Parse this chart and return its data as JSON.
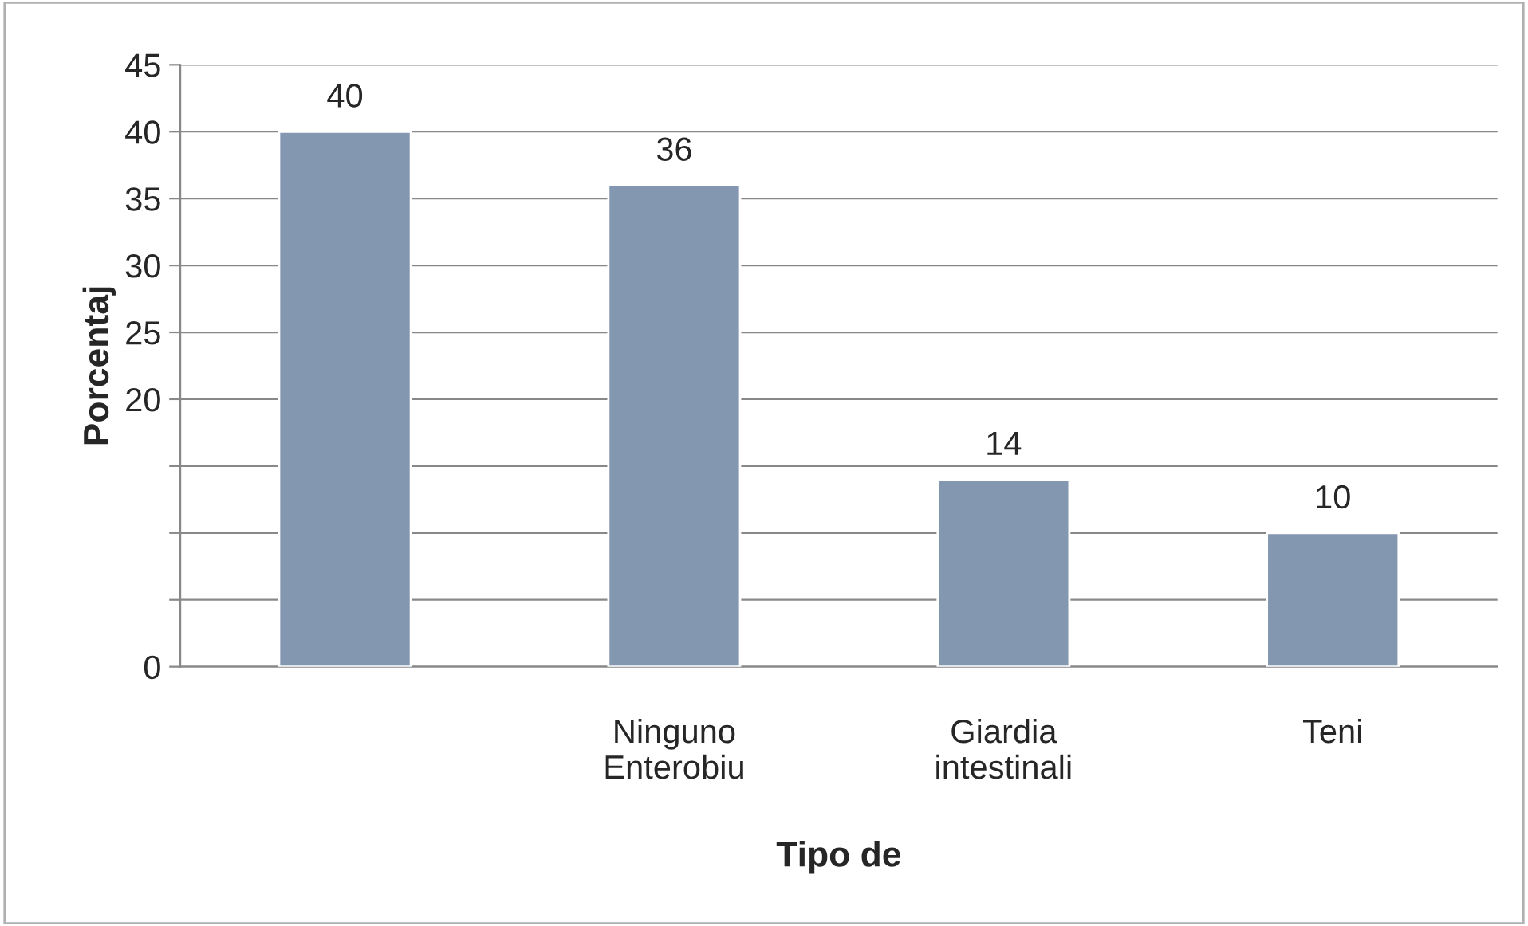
{
  "chart_data": {
    "type": "bar",
    "xlabel": "Tipo de",
    "ylabel": "Porcentaj",
    "categories": [
      null,
      "Ninguno\nEnterobiu",
      "Giardia\nintestinali",
      "Teni"
    ],
    "values": [
      40,
      36,
      14,
      10
    ],
    "color": "#8497b0",
    "ylim": [
      0,
      45
    ],
    "yticks": [
      0,
      {
        "value": 5,
        "label": null
      },
      {
        "value": 10,
        "label": null
      },
      {
        "value": 15,
        "label": null
      },
      20,
      25,
      30,
      35,
      40,
      45
    ],
    "grid": "y",
    "data_labels": true
  }
}
